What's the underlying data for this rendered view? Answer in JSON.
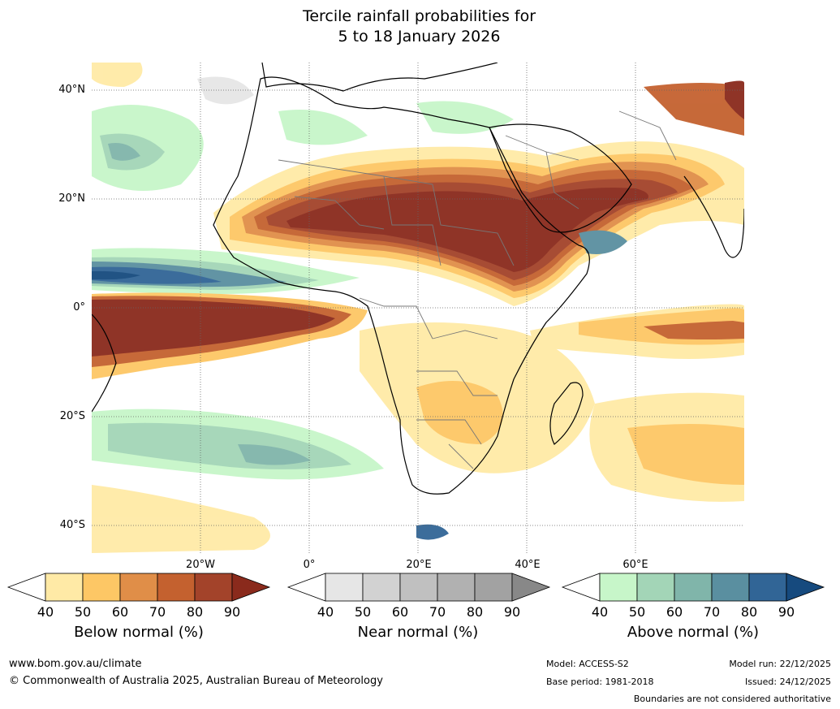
{
  "title": {
    "line1": "Tercile rainfall probabilities for",
    "line2": "5 to 18 January 2026"
  },
  "map": {
    "lat_labels": [
      "40°N",
      "20°N",
      "0°",
      "20°S",
      "40°S"
    ],
    "lon_labels": [
      "20°W",
      "0°",
      "20°E",
      "40°E",
      "60°E"
    ],
    "land_fill": "#ffffff",
    "ocean_fill": "#ffffff",
    "border_color": "#777777",
    "coast_color": "#000000"
  },
  "legends": [
    {
      "title": "Below normal (%)",
      "ticks": [
        "40",
        "50",
        "60",
        "70",
        "80",
        "90"
      ],
      "colors": [
        "#ffeaa6",
        "#fdc765",
        "#e08e48",
        "#c4612f",
        "#a3432a",
        "#8a2a1c"
      ]
    },
    {
      "title": "Near normal (%)",
      "ticks": [
        "40",
        "50",
        "60",
        "70",
        "80",
        "90"
      ],
      "colors": [
        "#e6e6e6",
        "#d2d2d2",
        "#c0c0c0",
        "#b1b1b1",
        "#a2a2a2",
        "#888888"
      ]
    },
    {
      "title": "Above normal (%)",
      "ticks": [
        "40",
        "50",
        "60",
        "70",
        "80",
        "90"
      ],
      "colors": [
        "#c7f6c9",
        "#a3d5b7",
        "#80b5aa",
        "#5a8fa0",
        "#316596",
        "#164a7e"
      ]
    }
  ],
  "footer": {
    "website": "www.bom.gov.au/climate",
    "copyright": "© Commonwealth of Australia 2025, Australian Bureau of Meteorology",
    "model": "Model: ACCESS-S2",
    "base_period": "Base period: 1981-2018",
    "model_run": "Model run: 22/12/2025",
    "issued": "Issued: 24/12/2025",
    "disclaimer": "Boundaries are not considered authoritative"
  }
}
